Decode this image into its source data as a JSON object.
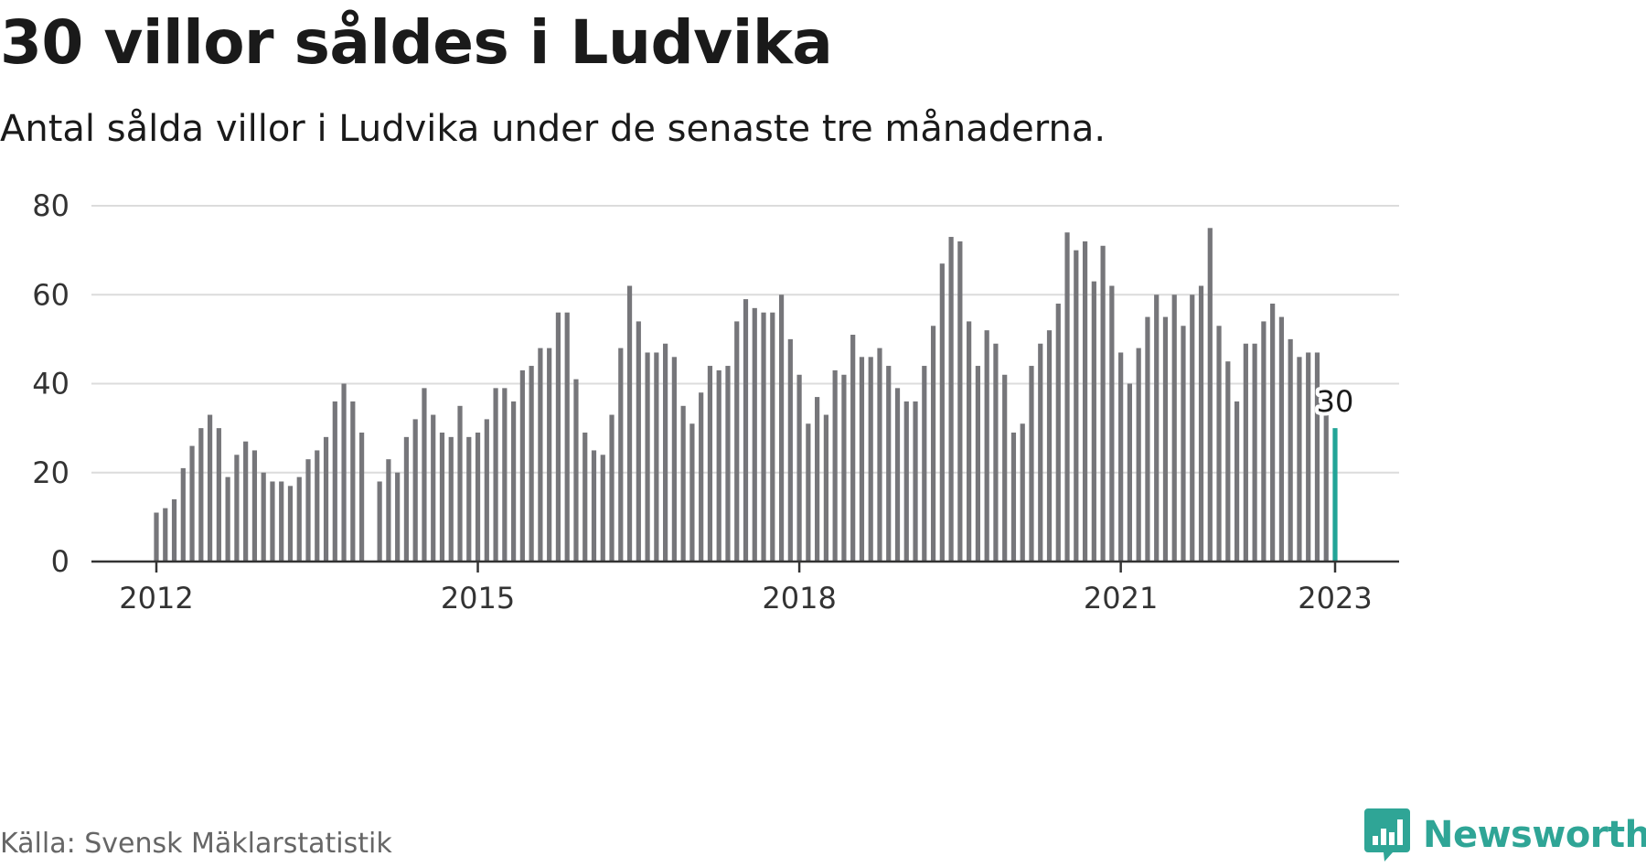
{
  "header": {
    "title": "30 villor såldes i Ludvika",
    "subtitle": "Antal sålda villor i Ludvika under de senaste tre månaderna."
  },
  "footer": {
    "source": "Källa: Svensk Mäklarstatistik",
    "brand": "Newsworthy"
  },
  "colors": {
    "bar": "#76767a",
    "highlight": "#22a497",
    "grid": "#dcdcdc",
    "axis": "#333333",
    "brand": "#2fa596"
  },
  "icons": {
    "brand_logo": "newsworthy-logo-icon"
  },
  "chart_data": {
    "type": "bar",
    "title": "30 villor såldes i Ludvika",
    "subtitle": "Antal sålda villor i Ludvika under de senaste tre månaderna.",
    "x_start": "2012-01",
    "x_end": "2023-01",
    "x_ticks": [
      "2012",
      "2015",
      "2018",
      "2021",
      "2023"
    ],
    "y_ticks": [
      0,
      20,
      40,
      60,
      80
    ],
    "ylim": [
      0,
      80
    ],
    "grid": true,
    "values": [
      11,
      12,
      14,
      21,
      26,
      30,
      33,
      30,
      19,
      24,
      27,
      25,
      20,
      18,
      18,
      17,
      19,
      23,
      25,
      28,
      36,
      40,
      36,
      29,
      null,
      18,
      23,
      20,
      28,
      32,
      39,
      33,
      29,
      28,
      35,
      28,
      29,
      32,
      39,
      39,
      36,
      43,
      44,
      48,
      48,
      56,
      56,
      41,
      29,
      25,
      24,
      33,
      48,
      62,
      54,
      47,
      47,
      49,
      46,
      35,
      31,
      38,
      44,
      43,
      44,
      54,
      59,
      57,
      56,
      56,
      60,
      50,
      42,
      31,
      37,
      33,
      43,
      42,
      51,
      46,
      46,
      48,
      44,
      39,
      36,
      36,
      44,
      53,
      67,
      73,
      72,
      54,
      44,
      52,
      49,
      42,
      29,
      31,
      44,
      49,
      52,
      58,
      74,
      70,
      72,
      63,
      71,
      62,
      47,
      40,
      48,
      55,
      60,
      55,
      60,
      53,
      60,
      62,
      75,
      53,
      45,
      36,
      49,
      49,
      54,
      58,
      55,
      50,
      46,
      47,
      47,
      33,
      30
    ],
    "highlight_last": true,
    "annotation": {
      "label": "30",
      "value": 30
    }
  }
}
